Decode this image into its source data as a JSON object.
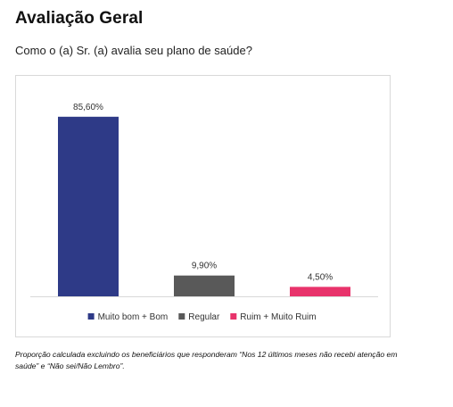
{
  "page": {
    "title": "Avaliação Geral",
    "question": "Como o (a) Sr. (a) avalia seu plano de saúde?",
    "footnote": "Proporção calculada excluindo os beneficiários que responderam “Nos 12 últimos meses não recebi atenção em saúde” e “Não sei/Não Lembro”."
  },
  "chart_data": {
    "type": "bar",
    "categories": [
      "Muito bom + Bom",
      "Regular",
      "Ruim + Muito Ruim"
    ],
    "values": [
      85.6,
      9.9,
      4.5
    ],
    "data_labels": [
      "85,60%",
      "9,90%",
      "4,50%"
    ],
    "colors": [
      "#2E3A87",
      "#595959",
      "#E8336B"
    ],
    "title": "",
    "xlabel": "",
    "ylabel": "",
    "ylim": [
      0,
      100
    ],
    "grid": false,
    "legend": {
      "position": "bottom",
      "entries": [
        "Muito bom + Bom",
        "Regular",
        "Ruim + Muito Ruim"
      ]
    }
  }
}
